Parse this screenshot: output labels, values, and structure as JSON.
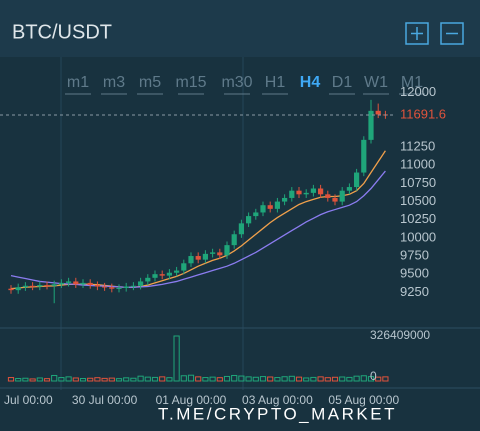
{
  "header": {
    "title": "BTC/USDT"
  },
  "timeframes": {
    "items": [
      "m1",
      "m3",
      "m5",
      "m15",
      "m30",
      "H1",
      "H4",
      "D1",
      "W1",
      "M1"
    ],
    "active": 6
  },
  "chart_data": {
    "type": "candlestick",
    "categories": [
      null,
      "Jul 00:00",
      null,
      null,
      null,
      null,
      null,
      null,
      null,
      null,
      null,
      null,
      null,
      "30 Jul 00:00",
      null,
      null,
      null,
      null,
      null,
      null,
      null,
      null,
      null,
      null,
      null,
      "01 Aug 00:00",
      null,
      null,
      null,
      null,
      null,
      null,
      null,
      null,
      null,
      null,
      null,
      "03 Aug 00:00",
      null,
      null,
      null,
      null,
      null,
      null,
      null,
      null,
      null,
      null,
      null,
      "05 Aug 00:00",
      null,
      null,
      null
    ],
    "open": [
      9300,
      9280,
      9320,
      9340,
      9330,
      9350,
      9340,
      9360,
      9380,
      9400,
      9360,
      9380,
      9350,
      9330,
      9320,
      9300,
      9310,
      9330,
      9340,
      9400,
      9450,
      9500,
      9480,
      9520,
      9550,
      9650,
      9750,
      9700,
      9780,
      9800,
      9760,
      9900,
      10050,
      10200,
      10300,
      10350,
      10450,
      10400,
      10500,
      10550,
      10650,
      10600,
      10620,
      10680,
      10600,
      10550,
      10500,
      10650,
      10700,
      10900,
      11350,
      11750,
      11700
    ],
    "high": [
      9350,
      9370,
      9390,
      9390,
      9400,
      9400,
      9410,
      9430,
      9450,
      9450,
      9430,
      9430,
      9400,
      9380,
      9370,
      9360,
      9380,
      9390,
      9450,
      9500,
      9550,
      9550,
      9570,
      9600,
      9700,
      9800,
      9800,
      9830,
      9850,
      9850,
      9950,
      10100,
      10250,
      10350,
      10400,
      10500,
      10500,
      10550,
      10600,
      10700,
      10700,
      10670,
      10730,
      10730,
      10650,
      10600,
      10700,
      10750,
      10950,
      11400,
      11900,
      11850,
      11750
    ],
    "low": [
      9230,
      9230,
      9270,
      9280,
      9280,
      9290,
      9100,
      9310,
      9330,
      9310,
      9310,
      9300,
      9280,
      9270,
      9250,
      9250,
      9260,
      9280,
      9290,
      9350,
      9400,
      9430,
      9430,
      9470,
      9500,
      9600,
      9650,
      9650,
      9730,
      9710,
      9710,
      9850,
      10000,
      10150,
      10250,
      10300,
      10350,
      10350,
      10450,
      10500,
      10550,
      10550,
      10570,
      10550,
      10500,
      10450,
      10450,
      10600,
      10650,
      10850,
      11300,
      11650,
      11640
    ],
    "close": [
      9280,
      9320,
      9340,
      9330,
      9350,
      9340,
      9360,
      9380,
      9400,
      9360,
      9380,
      9350,
      9330,
      9320,
      9300,
      9310,
      9330,
      9340,
      9400,
      9450,
      9500,
      9480,
      9520,
      9550,
      9650,
      9750,
      9700,
      9780,
      9800,
      9760,
      9900,
      10050,
      10200,
      10300,
      10350,
      10450,
      10400,
      10500,
      10550,
      10650,
      10600,
      10620,
      10680,
      10600,
      10550,
      10500,
      10650,
      10700,
      10900,
      11350,
      11750,
      11700,
      11691.6
    ],
    "up_color": "#1fa67a",
    "down_color": "#e0533c",
    "series": [
      {
        "color": "#f0a04b",
        "values": [
          9300,
          9310,
          9320,
          9325,
          9330,
          9335,
          9340,
          9350,
          9360,
          9360,
          9365,
          9360,
          9355,
          9345,
          9335,
          9325,
          9320,
          9320,
          9330,
          9350,
          9380,
          9410,
          9440,
          9470,
          9510,
          9560,
          9610,
          9650,
          9690,
          9720,
          9760,
          9820,
          9890,
          9970,
          10050,
          10130,
          10210,
          10280,
          10340,
          10400,
          10460,
          10500,
          10530,
          10560,
          10570,
          10570,
          10580,
          10600,
          10650,
          10750,
          10900,
          11050,
          11200
        ]
      },
      {
        "color": "#8b7cf0",
        "values": [
          9480,
          9460,
          9440,
          9420,
          9400,
          9390,
          9380,
          9370,
          9365,
          9360,
          9350,
          9345,
          9340,
          9335,
          9330,
          9325,
          9320,
          9320,
          9325,
          9330,
          9345,
          9360,
          9380,
          9400,
          9430,
          9460,
          9490,
          9520,
          9550,
          9580,
          9610,
          9650,
          9700,
          9750,
          9800,
          9860,
          9920,
          9980,
          10040,
          10100,
          10160,
          10220,
          10270,
          10320,
          10360,
          10390,
          10420,
          10450,
          10500,
          10580,
          10680,
          10800,
          10920
        ]
      }
    ],
    "ylim": [
      8800,
      12450
    ],
    "yticks": [
      9250,
      9500,
      9750,
      10000,
      10250,
      10500,
      10750,
      11000,
      11250,
      12000
    ],
    "last_price": 11691.6,
    "volume": {
      "values": [
        25000000,
        18000000,
        20000000,
        15000000,
        22000000,
        17000000,
        40000000,
        25000000,
        30000000,
        22000000,
        18000000,
        20000000,
        24000000,
        19000000,
        21000000,
        17000000,
        23000000,
        20000000,
        35000000,
        28000000,
        26000000,
        30000000,
        24000000,
        326409000,
        38000000,
        42000000,
        30000000,
        25000000,
        28000000,
        24000000,
        33000000,
        40000000,
        36000000,
        30000000,
        27000000,
        32000000,
        29000000,
        25000000,
        31000000,
        34000000,
        28000000,
        22000000,
        26000000,
        30000000,
        24000000,
        27000000,
        29000000,
        26000000,
        35000000,
        38000000,
        32000000,
        28000000,
        30000000
      ],
      "ylim": [
        0,
        326409000
      ],
      "yticks": [
        0,
        326409000
      ]
    }
  },
  "watermark": "T.ME/CRYPTO_MARKET"
}
